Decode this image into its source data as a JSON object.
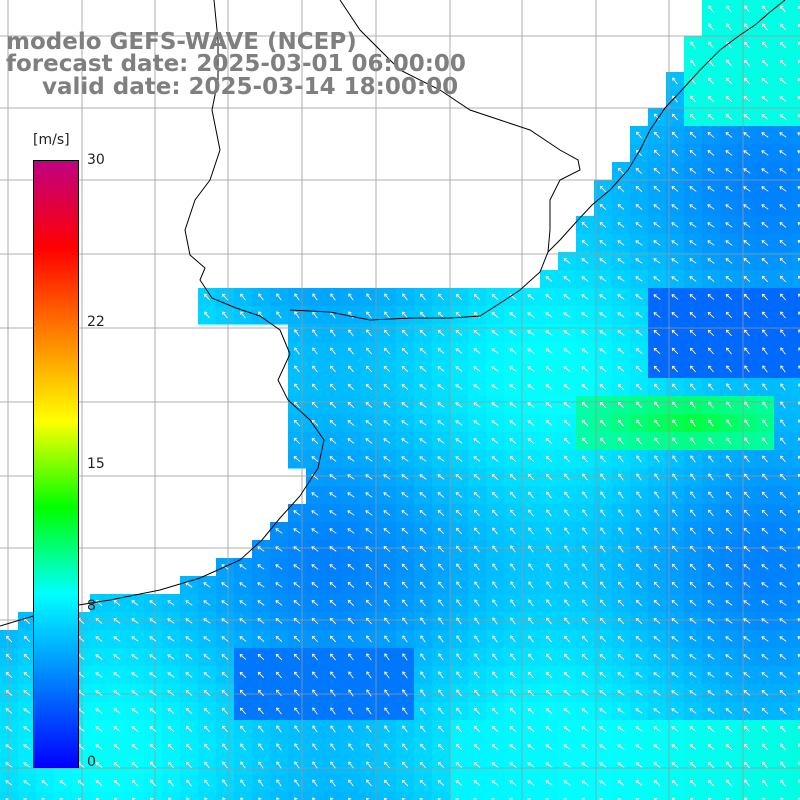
{
  "header": {
    "line1": "modelo GEFS-WAVE (NCEP)",
    "line2": "forecast date: 2025-03-01 06:00:00",
    "line3": "valid date: 2025-03-14 18:00:00"
  },
  "colorbar": {
    "unit": "[m/s]",
    "min": 0,
    "max": 30,
    "ticks": [
      {
        "label": "30",
        "value": 30
      },
      {
        "label": "22",
        "value": 22
      },
      {
        "label": "15",
        "value": 15
      },
      {
        "label": "8",
        "value": 8
      },
      {
        "label": "0",
        "value": 0
      }
    ],
    "colors": [
      "#0000ff",
      "#0080ff",
      "#00ffff",
      "#00ff00",
      "#ffff00",
      "#ff8000",
      "#ff0000",
      "#c00080"
    ]
  },
  "map": {
    "variable": "wind speed and direction",
    "ocean_field_color": "#0a8cf0",
    "land_color": "#ffffff",
    "grid_color": "#999999",
    "arrow_color": "#ffffff",
    "arrow_direction": "north-west"
  }
}
